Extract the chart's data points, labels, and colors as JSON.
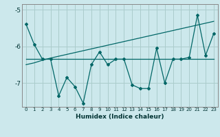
{
  "xlabel": "Humidex (Indice chaleur)",
  "bg_color": "#cce8ec",
  "grid_color": "#aacccc",
  "line_color": "#006666",
  "x": [
    0,
    1,
    2,
    3,
    4,
    5,
    6,
    7,
    8,
    9,
    10,
    11,
    12,
    13,
    14,
    15,
    16,
    17,
    18,
    19,
    20,
    21,
    22,
    23
  ],
  "y_main": [
    -5.4,
    -5.95,
    -6.35,
    -6.35,
    -7.35,
    -6.85,
    -7.1,
    -7.55,
    -6.5,
    -6.15,
    -6.5,
    -6.35,
    -6.35,
    -7.05,
    -7.15,
    -7.15,
    -6.05,
    -7.0,
    -6.35,
    -6.35,
    -6.3,
    -5.15,
    -6.25,
    -5.65
  ],
  "y_trend": [
    -6.5,
    -6.45,
    -6.38,
    -6.32,
    -6.27,
    -6.22,
    -6.17,
    -6.12,
    -6.07,
    -6.02,
    -5.97,
    -5.92,
    -5.87,
    -5.82,
    -5.77,
    -5.72,
    -5.67,
    -5.62,
    -5.57,
    -5.52,
    -5.47,
    -5.42,
    -5.37,
    -5.32
  ],
  "y_flat": [
    -6.35,
    -6.35,
    -6.35,
    -6.35,
    -6.35,
    -6.35,
    -6.35,
    -6.35,
    -6.35,
    -6.35,
    -6.35,
    -6.35,
    -6.35,
    -6.35,
    -6.35,
    -6.35,
    -6.35,
    -6.35,
    -6.35,
    -6.35,
    -6.35,
    -6.35,
    -6.35,
    -6.35
  ],
  "ylim": [
    -7.65,
    -4.85
  ],
  "yticks": [
    -7,
    -6,
    -5
  ],
  "xlim": [
    -0.5,
    23.5
  ],
  "figw": 3.2,
  "figh": 2.0,
  "dpi": 100
}
